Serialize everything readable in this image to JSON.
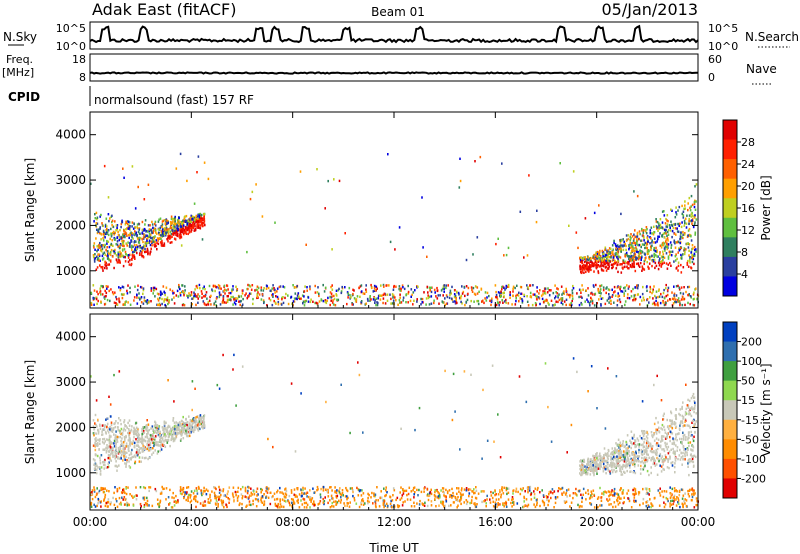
{
  "header": {
    "radar": "Adak East (fitACF)",
    "beam": "Beam 01",
    "date": "05/Jan/2013"
  },
  "summary_panels": {
    "sky_label": "N.Sky",
    "search_label": "N.Search",
    "freq_label_1": "Freq.",
    "freq_label_2": "[MHz]",
    "nave_label": "Nave",
    "cpid_label": "CPID",
    "cpid_text": "normalsound (fast) 157 RF",
    "sky_ticks": [
      "10^5",
      "10^0"
    ],
    "search_ticks": [
      "10^5",
      "10^0"
    ],
    "freq_ticks": [
      "18",
      "8"
    ],
    "nave_ticks": [
      "60",
      "0"
    ]
  },
  "colors": {
    "power_scale": [
      "#0000e0",
      "#2a3f9f",
      "#2f7f5f",
      "#5fbf3f",
      "#bfcf20",
      "#ff9f00",
      "#ff6000",
      "#ff2000",
      "#e00000"
    ],
    "velocity_scale": [
      "#e00000",
      "#ff5000",
      "#ff8c00",
      "#ffb040",
      "#c8c8b8",
      "#8fd84f",
      "#3f9f3f",
      "#2f6faf",
      "#0040c0"
    ],
    "ground": "#c8c8b8"
  },
  "chart_data": [
    {
      "type": "heatmap",
      "name": "power",
      "xlabel": "",
      "ylabel": "Slant Range [km]",
      "colorbar_label": "Power [dB]",
      "colorbar_ticks": [
        "28",
        "24",
        "20",
        "16",
        "12",
        "8",
        "4"
      ],
      "x_ticks": [
        "00:00",
        "04:00",
        "08:00",
        "12:00",
        "16:00",
        "20:00",
        "00:00"
      ],
      "y_ticks": [
        "4000",
        "3000",
        "2000",
        "1000"
      ],
      "xlim": [
        0,
        24
      ],
      "ylim": [
        180,
        4500
      ]
    },
    {
      "type": "heatmap",
      "name": "velocity",
      "xlabel": "Time UT",
      "ylabel": "Slant Range [km]",
      "colorbar_label": "Velocity [m s⁻¹]",
      "colorbar_ticks": [
        "200",
        "100",
        "50",
        "15",
        "-15",
        "-50",
        "-100",
        "-200"
      ],
      "x_ticks": [
        "00:00",
        "04:00",
        "08:00",
        "12:00",
        "16:00",
        "20:00",
        "00:00"
      ],
      "y_ticks": [
        "4000",
        "3000",
        "2000",
        "1000"
      ],
      "xlim": [
        0,
        24
      ],
      "ylim": [
        180,
        4500
      ]
    }
  ]
}
